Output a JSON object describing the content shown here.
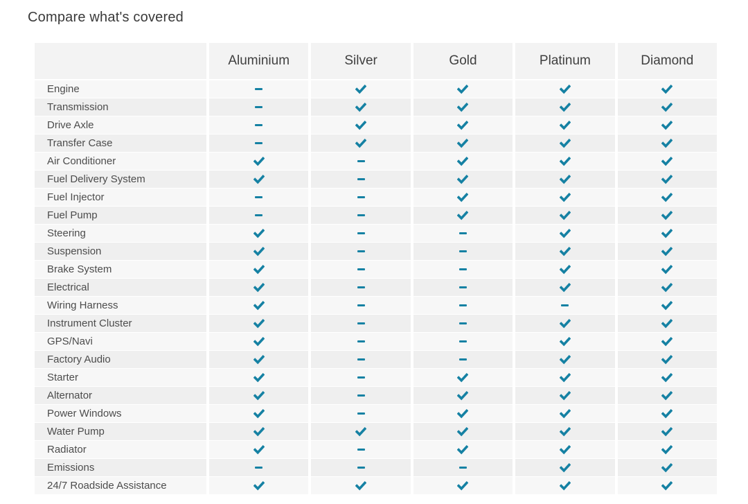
{
  "title": "Compare what's covered",
  "colors": {
    "accent": "#1581a3",
    "header_bg": "#f3f3f3",
    "row_odd": "#f7f7f7",
    "row_even": "#efefef"
  },
  "icons": {
    "covered": "check-icon",
    "not_covered": "dash-icon"
  },
  "table": {
    "columns": [
      "Aluminium",
      "Silver",
      "Gold",
      "Platinum",
      "Diamond"
    ],
    "rows": [
      {
        "label": "Engine",
        "covered": [
          0,
          1,
          1,
          1,
          1
        ]
      },
      {
        "label": "Transmission",
        "covered": [
          0,
          1,
          1,
          1,
          1
        ]
      },
      {
        "label": "Drive Axle",
        "covered": [
          0,
          1,
          1,
          1,
          1
        ]
      },
      {
        "label": "Transfer Case",
        "covered": [
          0,
          1,
          1,
          1,
          1
        ]
      },
      {
        "label": "Air Conditioner",
        "covered": [
          1,
          0,
          1,
          1,
          1
        ]
      },
      {
        "label": "Fuel Delivery System",
        "covered": [
          1,
          0,
          1,
          1,
          1
        ]
      },
      {
        "label": "Fuel Injector",
        "covered": [
          0,
          0,
          1,
          1,
          1
        ]
      },
      {
        "label": "Fuel Pump",
        "covered": [
          0,
          0,
          1,
          1,
          1
        ]
      },
      {
        "label": "Steering",
        "covered": [
          1,
          0,
          0,
          1,
          1
        ]
      },
      {
        "label": "Suspension",
        "covered": [
          1,
          0,
          0,
          1,
          1
        ]
      },
      {
        "label": "Brake System",
        "covered": [
          1,
          0,
          0,
          1,
          1
        ]
      },
      {
        "label": "Electrical",
        "covered": [
          1,
          0,
          0,
          1,
          1
        ]
      },
      {
        "label": "Wiring Harness",
        "covered": [
          1,
          0,
          0,
          0,
          1
        ]
      },
      {
        "label": "Instrument Cluster",
        "covered": [
          1,
          0,
          0,
          1,
          1
        ]
      },
      {
        "label": "GPS/Navi",
        "covered": [
          1,
          0,
          0,
          1,
          1
        ]
      },
      {
        "label": "Factory Audio",
        "covered": [
          1,
          0,
          0,
          1,
          1
        ]
      },
      {
        "label": "Starter",
        "covered": [
          1,
          0,
          1,
          1,
          1
        ]
      },
      {
        "label": "Alternator",
        "covered": [
          1,
          0,
          1,
          1,
          1
        ]
      },
      {
        "label": "Power Windows",
        "covered": [
          1,
          0,
          1,
          1,
          1
        ]
      },
      {
        "label": "Water Pump",
        "covered": [
          1,
          1,
          1,
          1,
          1
        ]
      },
      {
        "label": "Radiator",
        "covered": [
          1,
          0,
          1,
          1,
          1
        ]
      },
      {
        "label": "Emissions",
        "covered": [
          0,
          0,
          0,
          1,
          1
        ]
      },
      {
        "label": "24/7 Roadside Assistance",
        "covered": [
          1,
          1,
          1,
          1,
          1
        ]
      }
    ]
  }
}
